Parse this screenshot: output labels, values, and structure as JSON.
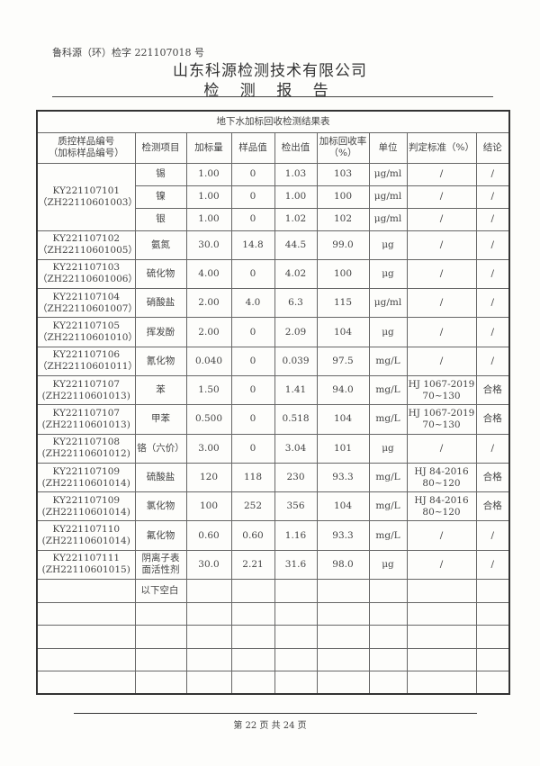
{
  "header": {
    "doc_number": "鲁科源（环）检字 221107018 号",
    "company": "山东科源检测技术有限公司",
    "report_title": "检 测 报 告"
  },
  "table": {
    "caption": "地下水加标回收检测结果表",
    "columns": [
      "质控样品编号\n（加标样品编号）",
      "检测项目",
      "加标量",
      "样品值",
      "检出值",
      "加标回收率（%）",
      "单位",
      "判定标准（%）",
      "结论"
    ],
    "group1": {
      "id": "KY221107101",
      "spike_id": "（ZH22110601003）",
      "rows": [
        [
          "锡",
          "1.00",
          "0",
          "1.03",
          "103",
          "μg/ml",
          "/",
          "/"
        ],
        [
          "镍",
          "1.00",
          "0",
          "1.00",
          "100",
          "μg/ml",
          "/",
          "/"
        ],
        [
          "银",
          "1.00",
          "0",
          "1.02",
          "102",
          "μg/ml",
          "/",
          "/"
        ]
      ]
    },
    "rows": [
      [
        "KY221107102",
        "（ZH22110601005）",
        "氨氮",
        "30.0",
        "14.8",
        "44.5",
        "99.0",
        "μg",
        "/",
        "/"
      ],
      [
        "KY221107103",
        "（ZH22110601006）",
        "硫化物",
        "4.00",
        "0",
        "4.02",
        "100",
        "μg",
        "/",
        "/"
      ],
      [
        "KY221107104",
        "（ZH22110601007）",
        "硝酸盐",
        "2.00",
        "4.0",
        "6.3",
        "115",
        "μg/ml",
        "/",
        "/"
      ],
      [
        "KY221107105",
        "（ZH22110601010）",
        "挥发酚",
        "2.00",
        "0",
        "2.09",
        "104",
        "μg",
        "/",
        "/"
      ],
      [
        "KY221107106",
        "（ZH22110601011）",
        "氰化物",
        "0.040",
        "0",
        "0.039",
        "97.5",
        "mg/L",
        "/",
        "/"
      ],
      [
        "KY221107107",
        "(ZH22110601013)",
        "苯",
        "1.50",
        "0",
        "1.41",
        "94.0",
        "mg/L",
        "HJ 1067-2019\n70~130",
        "合格"
      ],
      [
        "KY221107107",
        "(ZH22110601013)",
        "甲苯",
        "0.500",
        "0",
        "0.518",
        "104",
        "mg/L",
        "HJ 1067-2019\n70~130",
        "合格"
      ],
      [
        "KY221107108",
        "(ZH22110601012)",
        "铬（六价）",
        "3.00",
        "0",
        "3.04",
        "101",
        "μg",
        "/",
        "/"
      ],
      [
        "KY221107109",
        "(ZH22110601014)",
        "硫酸盐",
        "120",
        "118",
        "230",
        "93.3",
        "mg/L",
        "HJ 84-2016\n80~120",
        "合格"
      ],
      [
        "KY221107109",
        "(ZH22110601014)",
        "氯化物",
        "100",
        "252",
        "356",
        "104",
        "mg/L",
        "HJ 84-2016\n80~120",
        "合格"
      ],
      [
        "KY221107110",
        "(ZH22110601014)",
        "氟化物",
        "0.60",
        "0.60",
        "1.16",
        "93.3",
        "mg/L",
        "/",
        "/"
      ],
      [
        "KY221107111",
        "(ZH22110601015)",
        "阴离子表面活性剂",
        "30.0",
        "2.21",
        "31.6",
        "98.0",
        "μg",
        "/",
        "/"
      ]
    ],
    "blank_note": "以下空白"
  },
  "footer": {
    "page": "第 22 页 共 24 页"
  }
}
